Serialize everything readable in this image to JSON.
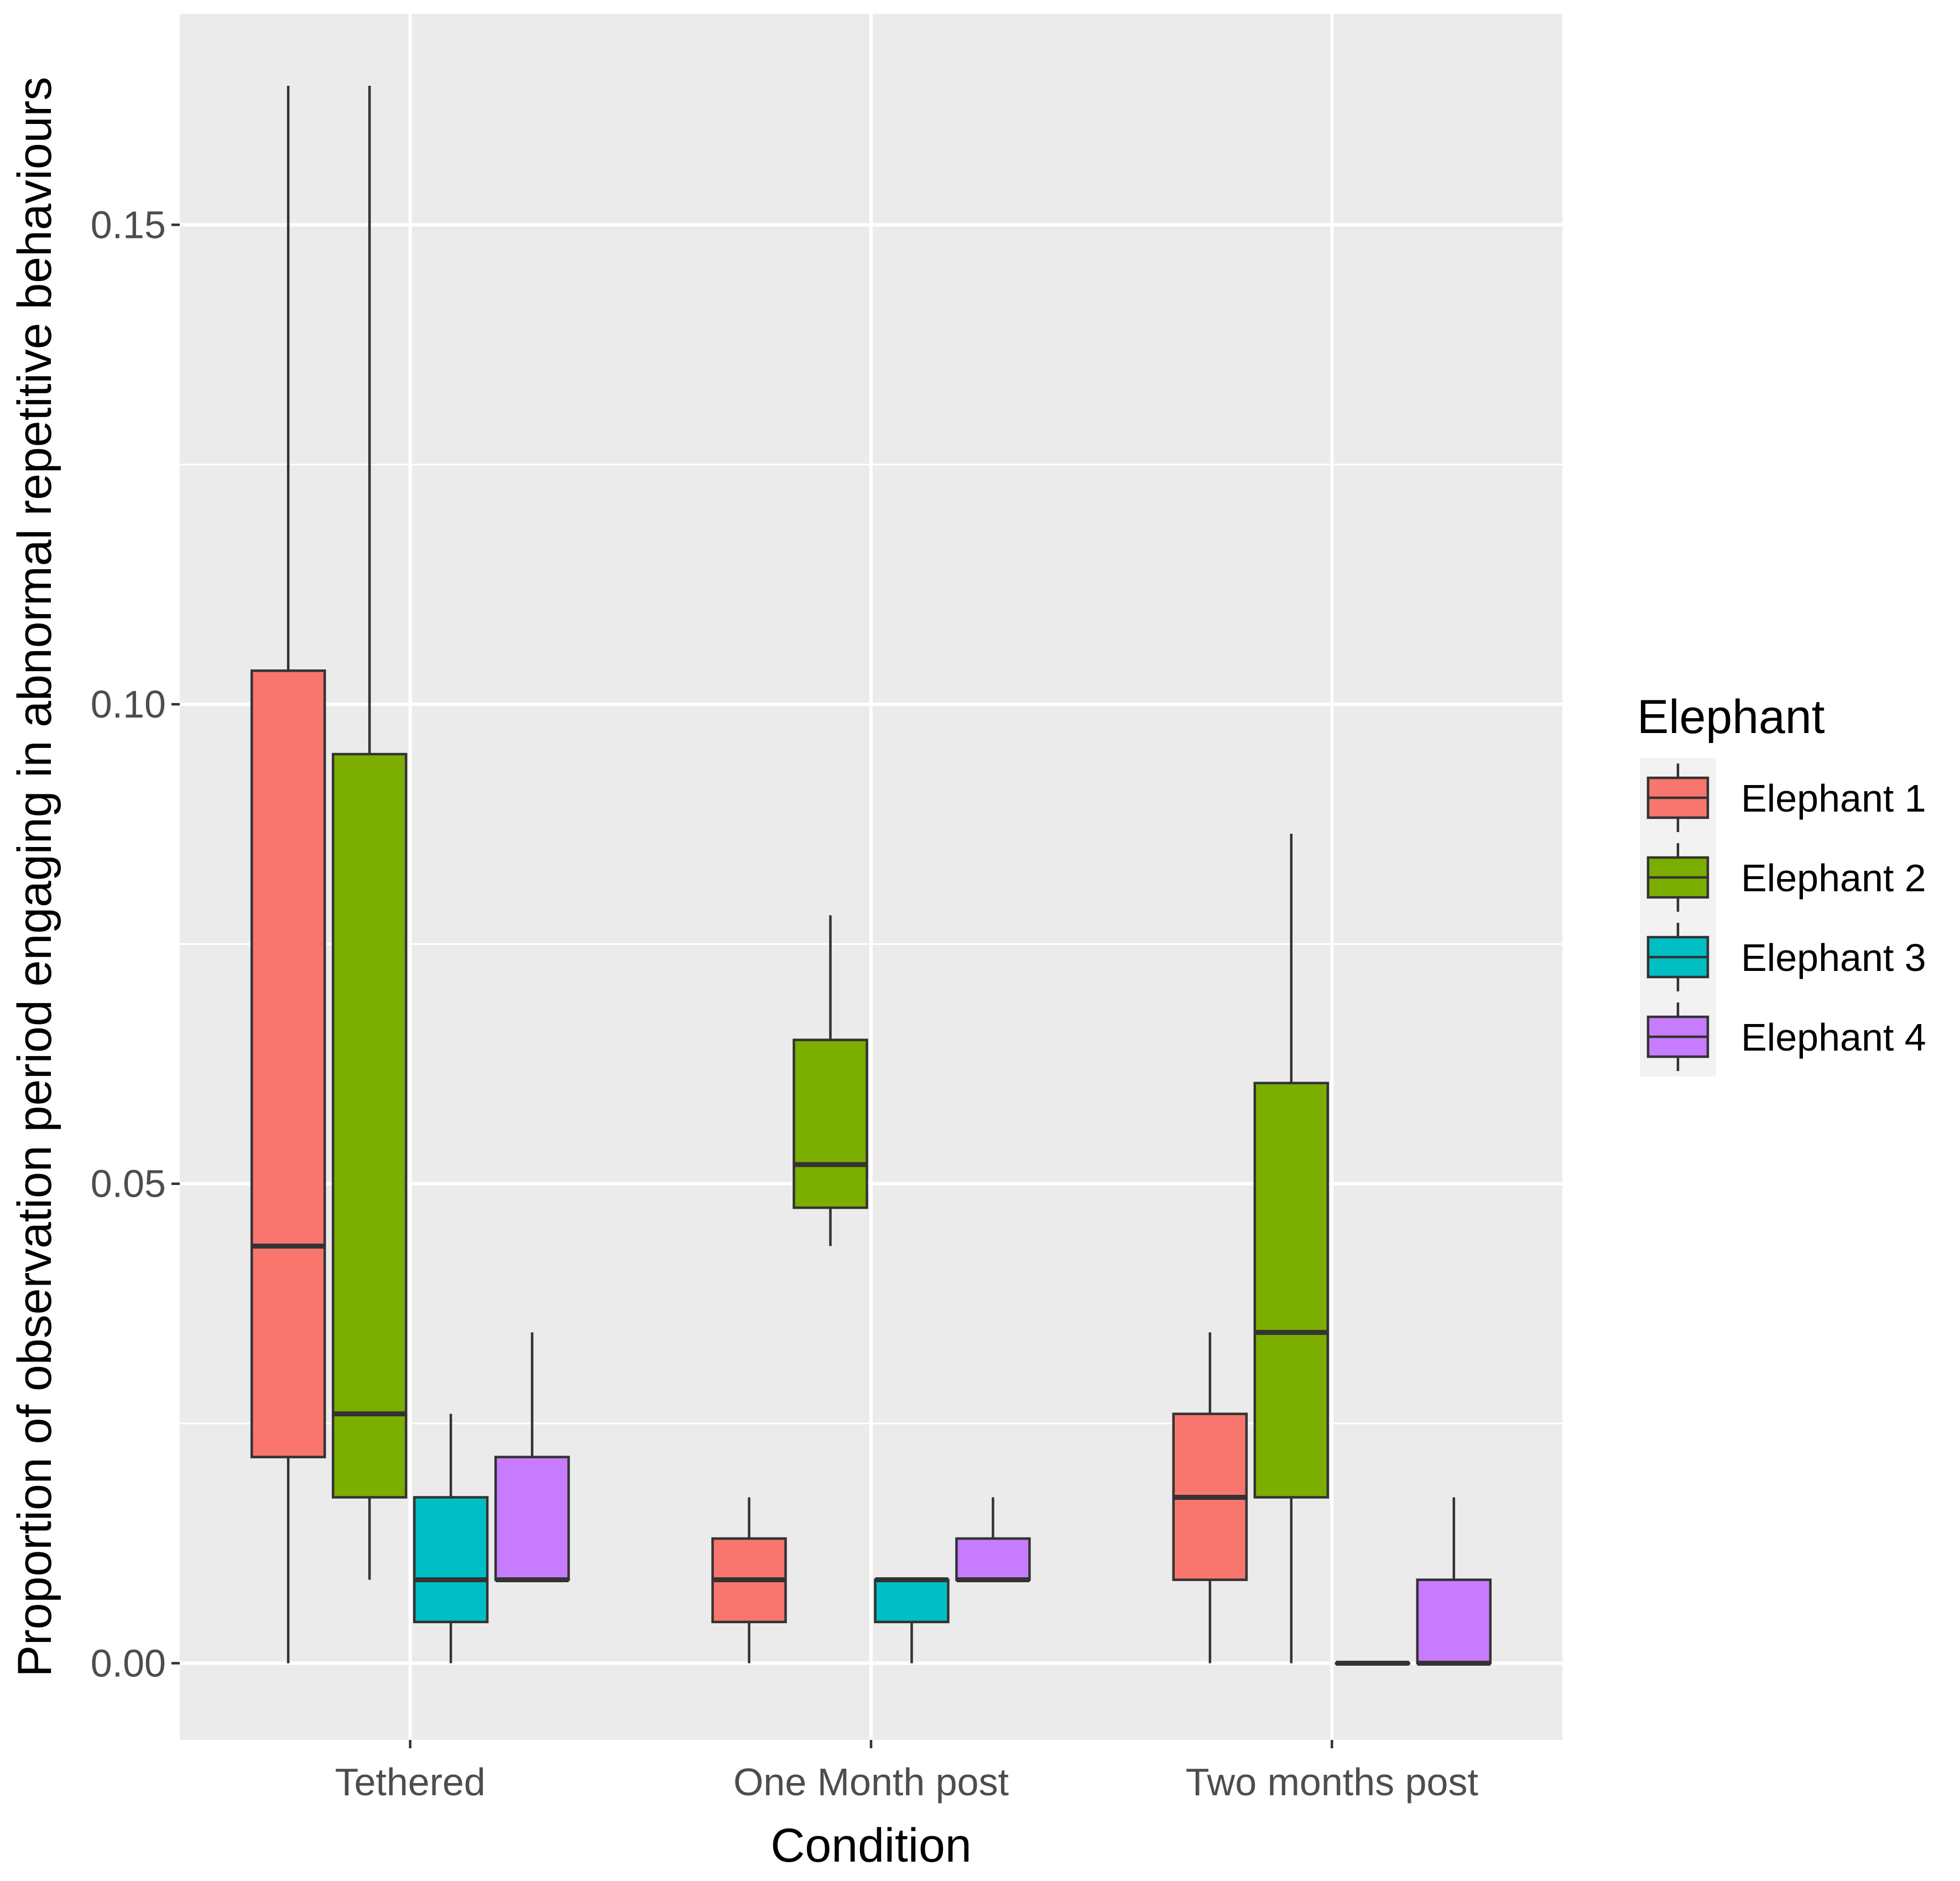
{
  "chart_data": {
    "type": "boxplot",
    "title": "",
    "xlabel": "Condition",
    "ylabel": "Proportion of observation period engaging in abnormal repetitive behaviours",
    "ylim": [
      -0.008,
      0.172
    ],
    "yticks": [
      0.0,
      0.05,
      0.1,
      0.15
    ],
    "ytick_labels": [
      "0.00",
      "0.05",
      "0.10",
      "0.15"
    ],
    "categories": [
      "Tethered",
      "One Month post",
      "Two months post"
    ],
    "legend": {
      "title": "Elephant",
      "position": "right"
    },
    "series": [
      {
        "name": "Elephant 1",
        "color": "#F8766D",
        "boxes": [
          {
            "category": "Tethered",
            "min": 0.0,
            "q1": 0.0215,
            "median": 0.0435,
            "q3": 0.1035,
            "max": 0.1645
          },
          {
            "category": "One Month post",
            "min": 0.0,
            "q1": 0.0043,
            "median": 0.0087,
            "q3": 0.013,
            "max": 0.0173
          },
          {
            "category": "Two months post",
            "min": 0.0,
            "q1": 0.0087,
            "median": 0.0173,
            "q3": 0.026,
            "max": 0.0345
          }
        ]
      },
      {
        "name": "Elephant 2",
        "color": "#7CAE00",
        "boxes": [
          {
            "category": "Tethered",
            "min": 0.0087,
            "q1": 0.0173,
            "median": 0.026,
            "q3": 0.0948,
            "max": 0.1645
          },
          {
            "category": "One Month post",
            "min": 0.0435,
            "q1": 0.0475,
            "median": 0.052,
            "q3": 0.065,
            "max": 0.078
          },
          {
            "category": "Two months post",
            "min": 0.0,
            "q1": 0.0173,
            "median": 0.0345,
            "q3": 0.0605,
            "max": 0.0865
          }
        ]
      },
      {
        "name": "Elephant 3",
        "color": "#00BFC4",
        "boxes": [
          {
            "category": "Tethered",
            "min": 0.0,
            "q1": 0.0043,
            "median": 0.0087,
            "q3": 0.0173,
            "max": 0.026
          },
          {
            "category": "One Month post",
            "min": 0.0,
            "q1": 0.0043,
            "median": 0.0087,
            "q3": 0.0087,
            "max": 0.0087
          },
          {
            "category": "Two months post",
            "min": 0.0,
            "q1": 0.0,
            "median": 0.0,
            "q3": 0.0,
            "max": 0.0
          }
        ]
      },
      {
        "name": "Elephant 4",
        "color": "#C77CFF",
        "boxes": [
          {
            "category": "Tethered",
            "min": 0.0087,
            "q1": 0.0087,
            "median": 0.0087,
            "q3": 0.0215,
            "max": 0.0345
          },
          {
            "category": "One Month post",
            "min": 0.0087,
            "q1": 0.0087,
            "median": 0.0087,
            "q3": 0.013,
            "max": 0.0173
          },
          {
            "category": "Two months post",
            "min": 0.0,
            "q1": 0.0,
            "median": 0.0,
            "q3": 0.0087,
            "max": 0.0173
          }
        ]
      }
    ]
  }
}
